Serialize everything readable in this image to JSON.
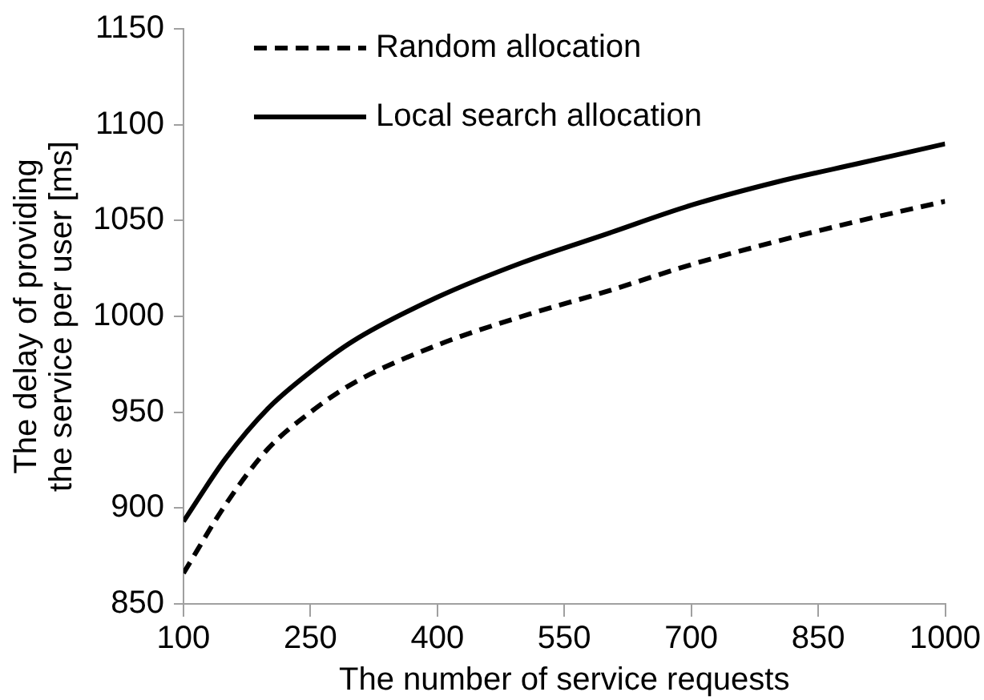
{
  "chart_data": {
    "type": "line",
    "xlabel": "The number of service requests",
    "ylabel": "The delay of providing the service per user [ms]",
    "x": [
      100,
      150,
      200,
      250,
      300,
      400,
      500,
      600,
      700,
      800,
      900,
      1000
    ],
    "series": [
      {
        "name": "Random allocation",
        "color": "#000000",
        "line_style": "dashed",
        "values": [
          866,
          902,
          931,
          950,
          965,
          985,
          1000,
          1013,
          1027,
          1039,
          1050,
          1060
        ]
      },
      {
        "name": "Local search allocation",
        "color": "#000000",
        "line_style": "solid",
        "values": [
          893,
          926,
          952,
          971,
          987,
          1010,
          1028,
          1043,
          1058,
          1070,
          1080,
          1090
        ]
      }
    ],
    "xlim": [
      100,
      1000
    ],
    "xticks": [
      100,
      250,
      400,
      550,
      700,
      850,
      1000
    ],
    "ylim": [
      850,
      1150
    ],
    "yticks": [
      850,
      900,
      950,
      1000,
      1050,
      1100,
      1150
    ],
    "grid": false,
    "legend": "top left",
    "marker": "none"
  }
}
